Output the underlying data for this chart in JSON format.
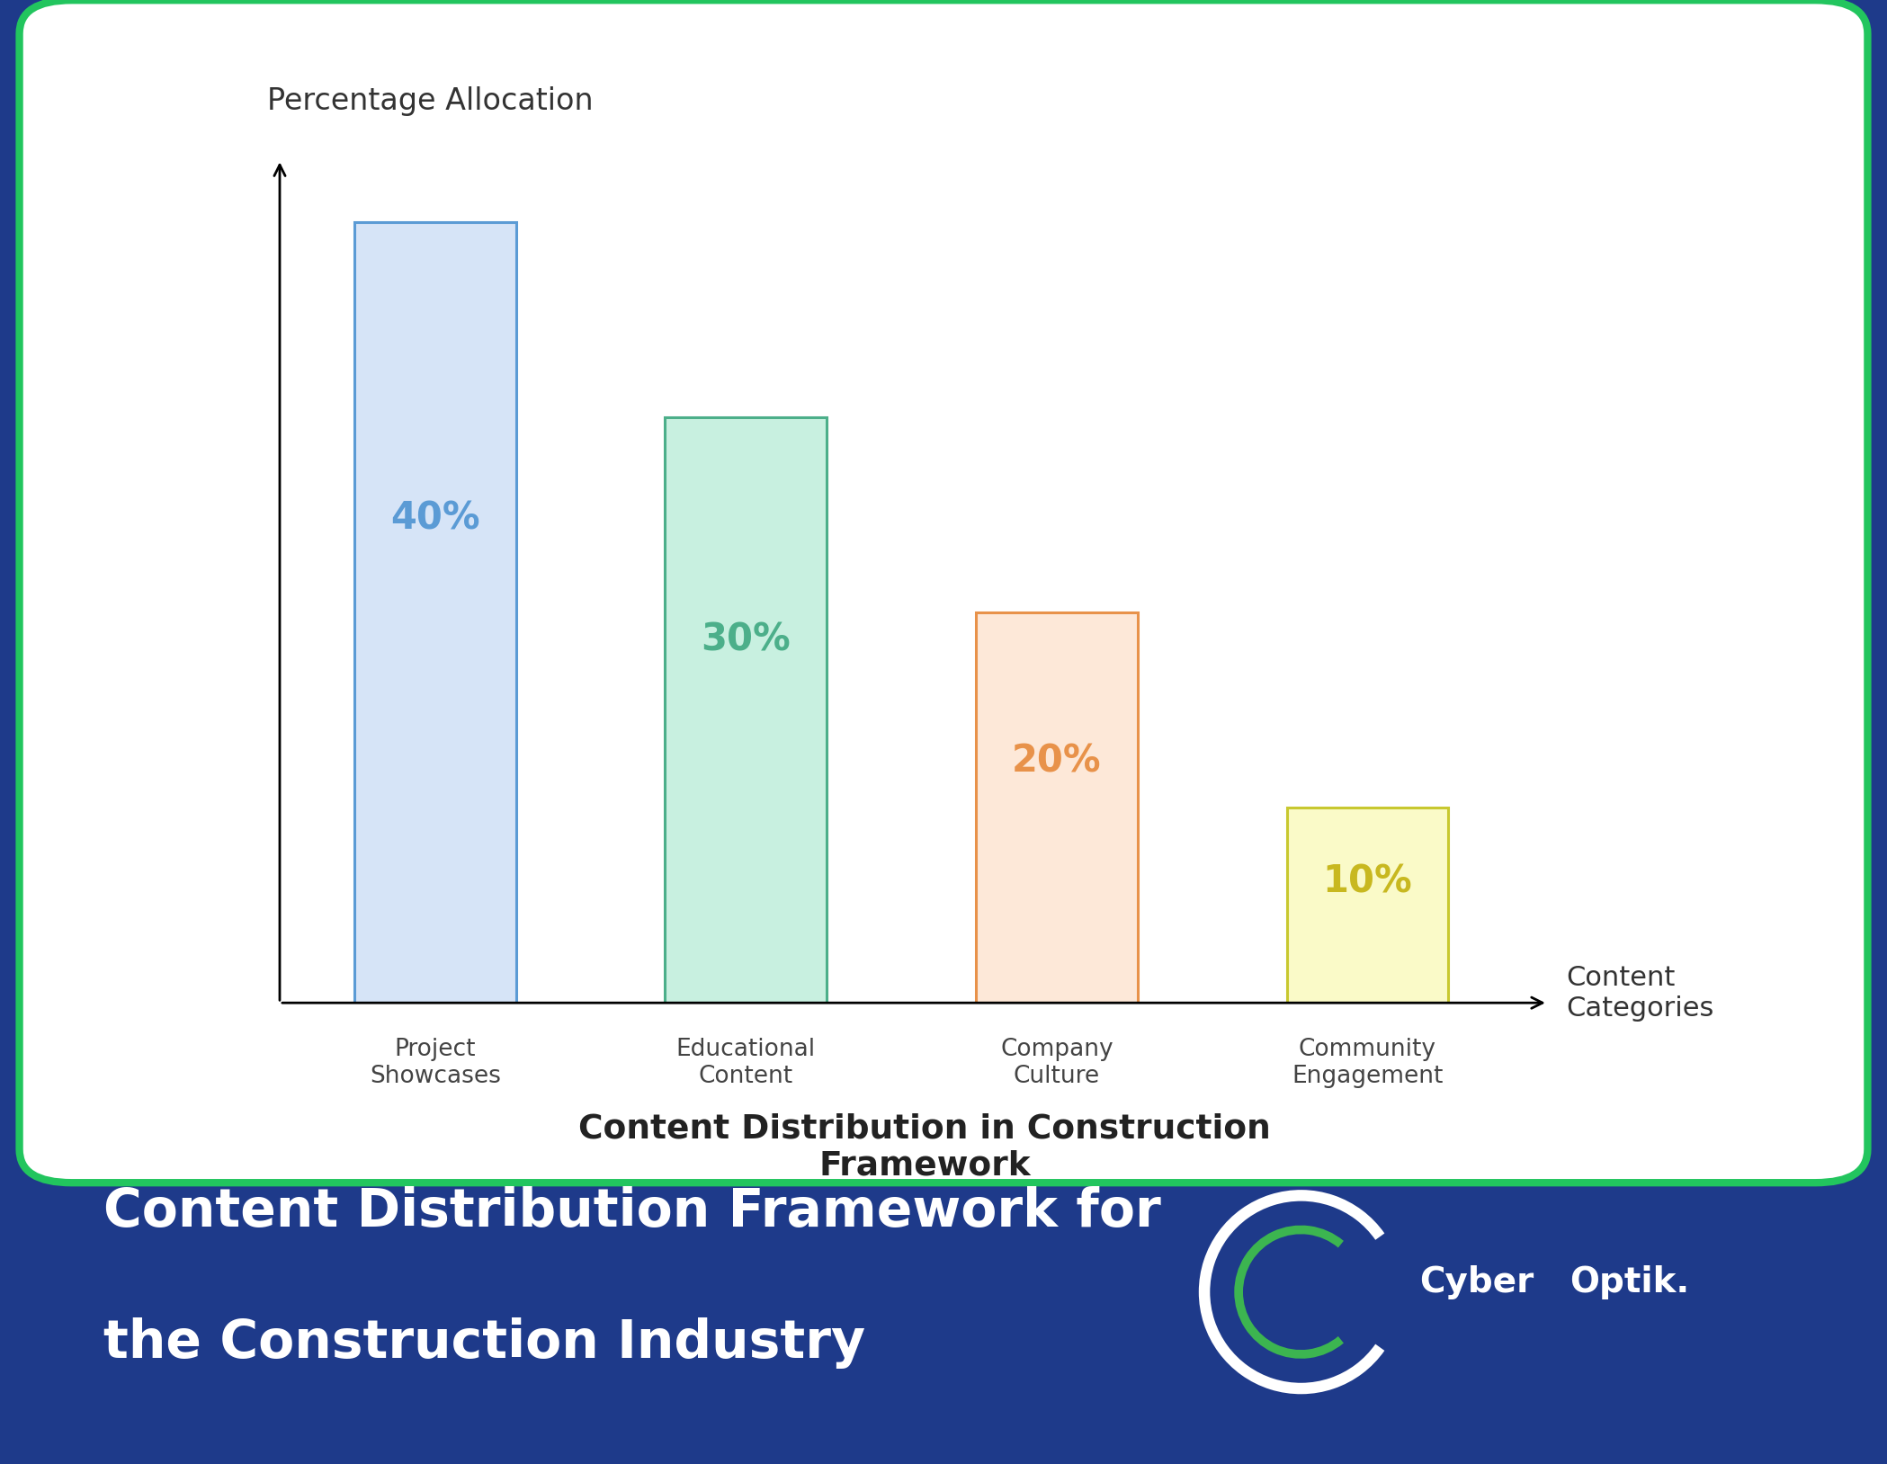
{
  "categories": [
    "Project\nShowcases",
    "Educational\nContent",
    "Company\nCulture",
    "Community\nEngagement"
  ],
  "values": [
    40,
    30,
    20,
    10
  ],
  "labels": [
    "40%",
    "30%",
    "20%",
    "10%"
  ],
  "bar_face_colors": [
    "#d6e4f7",
    "#c8f0e0",
    "#fde8d8",
    "#fafac8"
  ],
  "bar_edge_colors": [
    "#5b9bd5",
    "#4caf8a",
    "#e8924a",
    "#c8c830"
  ],
  "label_colors": [
    "#5b9bd5",
    "#4caf8a",
    "#e8924a",
    "#c8b820"
  ],
  "ylabel": "Percentage Allocation",
  "xlabel": "Content\nCategories",
  "chart_title": "Content Distribution in Construction\nFramework",
  "bottom_title_line1": "Content Distribution Framework for",
  "bottom_title_line2": "the Construction Industry",
  "background_color": "#1e3a8a",
  "card_background": "#ffffff",
  "card_border_color": "#22c55e",
  "ylim": [
    0,
    45
  ],
  "bar_width": 0.52,
  "logo_white": "#ffffff",
  "logo_green": "#4ade80",
  "cyber_color": "#ffffff",
  "optik_color": "#ffffff"
}
